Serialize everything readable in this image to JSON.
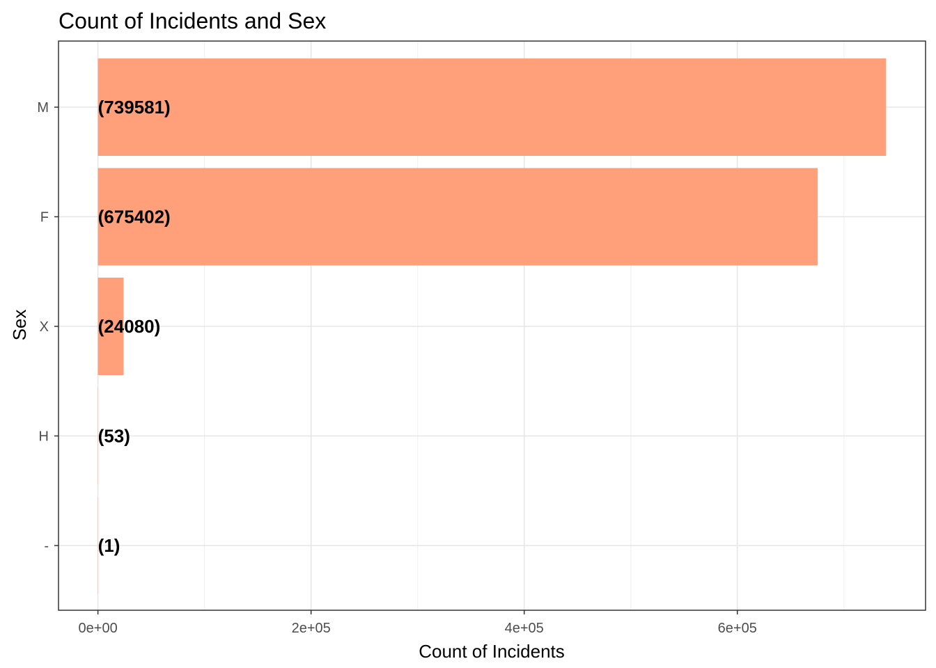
{
  "chart_data": {
    "type": "bar",
    "orientation": "horizontal",
    "title": "Count of Incidents and Sex",
    "xlabel": "Count of Incidents",
    "ylabel": "Sex",
    "categories": [
      "M",
      "F",
      "X",
      "H",
      "-"
    ],
    "values": [
      739581,
      675402,
      24080,
      53,
      1
    ],
    "data_labels": [
      "(739581)",
      "(675402)",
      "(24080)",
      "(53)",
      "(1)"
    ],
    "x_ticks": [
      0,
      200000,
      400000,
      600000
    ],
    "x_tick_labels": [
      "0e+00",
      "2e+05",
      "4e+05",
      "6e+05"
    ],
    "xlim": [
      -37000,
      776600
    ],
    "grid": true,
    "colors": {
      "bar": "#FFA07A",
      "grid_major": "#e5e5e5",
      "grid_minor": "#f2f2f2",
      "panel_border": "#333333",
      "tick_text": "#4d4d4d"
    }
  }
}
